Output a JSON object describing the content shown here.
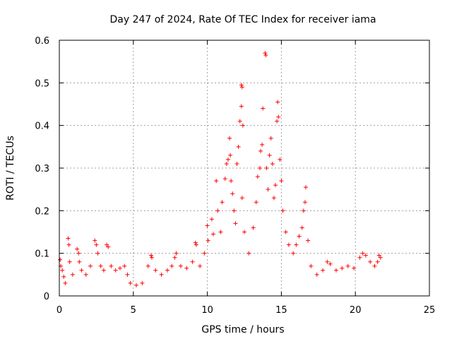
{
  "chart_data": {
    "type": "scatter",
    "title": "Day 247 of 2024, Rate Of TEC Index for receiver iama",
    "xlabel": "GPS time / hours",
    "ylabel": "ROTI / TECUs",
    "xlim": [
      0,
      25
    ],
    "ylim": [
      0,
      0.6
    ],
    "xticks": [
      0,
      5,
      10,
      15,
      20,
      25
    ],
    "xtick_labels": [
      "0",
      "5",
      "10",
      "15",
      "20",
      "25"
    ],
    "yticks": [
      0,
      0.1,
      0.2,
      0.3,
      0.4,
      0.5,
      0.6
    ],
    "ytick_labels": [
      "0",
      "0.1",
      "0.2",
      "0.3",
      "0.4",
      "0.5",
      "0.6"
    ],
    "grid": true,
    "marker": "+",
    "marker_color": "#ff0000",
    "series": [
      {
        "name": "ROTI",
        "points": [
          [
            0.05,
            0.085
          ],
          [
            0.1,
            0.07
          ],
          [
            0.2,
            0.06
          ],
          [
            0.3,
            0.045
          ],
          [
            0.4,
            0.03
          ],
          [
            0.6,
            0.135
          ],
          [
            0.65,
            0.12
          ],
          [
            0.7,
            0.08
          ],
          [
            0.9,
            0.05
          ],
          [
            1.2,
            0.11
          ],
          [
            1.3,
            0.1
          ],
          [
            1.35,
            0.08
          ],
          [
            1.5,
            0.06
          ],
          [
            1.8,
            0.05
          ],
          [
            2.1,
            0.07
          ],
          [
            2.4,
            0.13
          ],
          [
            2.5,
            0.12
          ],
          [
            2.6,
            0.1
          ],
          [
            2.8,
            0.07
          ],
          [
            3.0,
            0.06
          ],
          [
            3.2,
            0.12
          ],
          [
            3.3,
            0.115
          ],
          [
            3.5,
            0.07
          ],
          [
            3.8,
            0.06
          ],
          [
            4.1,
            0.065
          ],
          [
            4.4,
            0.07
          ],
          [
            4.6,
            0.05
          ],
          [
            4.8,
            0.03
          ],
          [
            5.2,
            0.025
          ],
          [
            5.6,
            0.03
          ],
          [
            6.0,
            0.07
          ],
          [
            6.2,
            0.095
          ],
          [
            6.25,
            0.09
          ],
          [
            6.5,
            0.06
          ],
          [
            6.9,
            0.05
          ],
          [
            7.3,
            0.06
          ],
          [
            7.6,
            0.07
          ],
          [
            7.8,
            0.09
          ],
          [
            7.9,
            0.1
          ],
          [
            8.2,
            0.07
          ],
          [
            8.6,
            0.065
          ],
          [
            9.0,
            0.08
          ],
          [
            9.2,
            0.125
          ],
          [
            9.25,
            0.12
          ],
          [
            9.5,
            0.07
          ],
          [
            9.8,
            0.1
          ],
          [
            10.0,
            0.165
          ],
          [
            10.05,
            0.13
          ],
          [
            10.3,
            0.18
          ],
          [
            10.4,
            0.145
          ],
          [
            10.6,
            0.27
          ],
          [
            10.7,
            0.2
          ],
          [
            10.9,
            0.15
          ],
          [
            11.0,
            0.22
          ],
          [
            11.2,
            0.275
          ],
          [
            11.3,
            0.31
          ],
          [
            11.4,
            0.32
          ],
          [
            11.5,
            0.37
          ],
          [
            11.55,
            0.33
          ],
          [
            11.6,
            0.27
          ],
          [
            11.7,
            0.24
          ],
          [
            11.8,
            0.2
          ],
          [
            11.9,
            0.17
          ],
          [
            12.0,
            0.31
          ],
          [
            12.1,
            0.35
          ],
          [
            12.2,
            0.41
          ],
          [
            12.3,
            0.495
          ],
          [
            12.35,
            0.49
          ],
          [
            12.3,
            0.445
          ],
          [
            12.4,
            0.4
          ],
          [
            12.35,
            0.23
          ],
          [
            12.5,
            0.15
          ],
          [
            12.8,
            0.1
          ],
          [
            13.1,
            0.16
          ],
          [
            13.3,
            0.22
          ],
          [
            13.4,
            0.28
          ],
          [
            13.55,
            0.3
          ],
          [
            13.6,
            0.34
          ],
          [
            13.7,
            0.355
          ],
          [
            13.75,
            0.44
          ],
          [
            13.9,
            0.57
          ],
          [
            13.95,
            0.565
          ],
          [
            14.0,
            0.3
          ],
          [
            14.1,
            0.25
          ],
          [
            14.2,
            0.33
          ],
          [
            14.3,
            0.37
          ],
          [
            14.4,
            0.31
          ],
          [
            14.5,
            0.23
          ],
          [
            14.6,
            0.26
          ],
          [
            14.7,
            0.41
          ],
          [
            14.75,
            0.455
          ],
          [
            14.8,
            0.42
          ],
          [
            14.9,
            0.32
          ],
          [
            15.0,
            0.27
          ],
          [
            15.1,
            0.2
          ],
          [
            15.3,
            0.15
          ],
          [
            15.5,
            0.12
          ],
          [
            15.8,
            0.1
          ],
          [
            16.0,
            0.12
          ],
          [
            16.2,
            0.14
          ],
          [
            16.4,
            0.16
          ],
          [
            16.5,
            0.2
          ],
          [
            16.6,
            0.22
          ],
          [
            16.65,
            0.255
          ],
          [
            16.8,
            0.13
          ],
          [
            17.0,
            0.07
          ],
          [
            17.4,
            0.05
          ],
          [
            17.8,
            0.06
          ],
          [
            18.1,
            0.08
          ],
          [
            18.3,
            0.075
          ],
          [
            18.7,
            0.06
          ],
          [
            19.1,
            0.065
          ],
          [
            19.5,
            0.07
          ],
          [
            19.9,
            0.065
          ],
          [
            20.3,
            0.09
          ],
          [
            20.5,
            0.1
          ],
          [
            20.7,
            0.095
          ],
          [
            21.0,
            0.08
          ],
          [
            21.3,
            0.07
          ],
          [
            21.5,
            0.08
          ],
          [
            21.6,
            0.095
          ],
          [
            21.7,
            0.09
          ]
        ]
      }
    ]
  }
}
